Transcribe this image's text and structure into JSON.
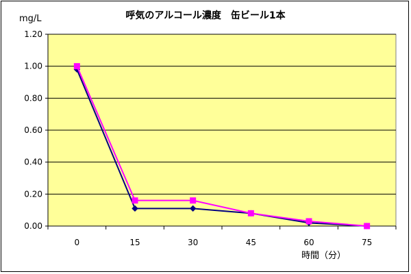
{
  "chart_data": {
    "type": "line",
    "title": "呼気のアルコール濃度　缶ビール1本",
    "ylabel": "mg/L",
    "xlabel": "時間（分）",
    "categories": [
      "0",
      "15",
      "30",
      "45",
      "60",
      "75"
    ],
    "ylim": [
      0,
      1.2
    ],
    "yticks": [
      "0.00",
      "0.20",
      "0.40",
      "0.60",
      "0.80",
      "1.00",
      "1.20"
    ],
    "grid": true,
    "legend": "none",
    "plot_background": "#FFFF99",
    "series": [
      {
        "values": [
          0.98,
          0.11,
          0.11,
          0.08,
          0.02,
          0.0
        ],
        "color": "#000080",
        "marker": "diamond"
      },
      {
        "values": [
          1.0,
          0.16,
          0.16,
          0.08,
          0.03,
          0.0
        ],
        "color": "#FF00FF",
        "marker": "square"
      }
    ]
  }
}
